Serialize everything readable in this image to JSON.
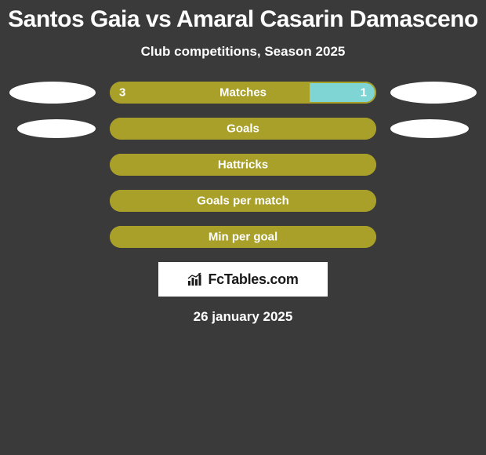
{
  "header": {
    "title": "Santos Gaia vs Amaral Casarin Damasceno",
    "subtitle": "Club competitions, Season 2025"
  },
  "colors": {
    "background": "#3a3a3a",
    "text": "#ffffff",
    "left_color": "#a9a02a",
    "right_color": "#7fd4d4",
    "bar_border": "#a9a02a",
    "bar_fill": "#a9a02a",
    "avatar": "#ffffff",
    "brand_bg": "#ffffff",
    "brand_text": "#1a1a1a"
  },
  "stats": [
    {
      "label": "Matches",
      "left_value": "3",
      "right_value": "1",
      "left_pct": 75,
      "right_pct": 25,
      "show_avatars": true,
      "avatar_size": "lg"
    },
    {
      "label": "Goals",
      "left_value": "",
      "right_value": "",
      "left_pct": 100,
      "right_pct": 0,
      "show_avatars": true,
      "avatar_size": "sm"
    },
    {
      "label": "Hattricks",
      "left_value": "",
      "right_value": "",
      "left_pct": 100,
      "right_pct": 0,
      "show_avatars": false
    },
    {
      "label": "Goals per match",
      "left_value": "",
      "right_value": "",
      "left_pct": 100,
      "right_pct": 0,
      "show_avatars": false
    },
    {
      "label": "Min per goal",
      "left_value": "",
      "right_value": "",
      "left_pct": 100,
      "right_pct": 0,
      "show_avatars": false
    }
  ],
  "brand": {
    "text": "FcTables.com"
  },
  "footer": {
    "date": "26 january 2025"
  }
}
